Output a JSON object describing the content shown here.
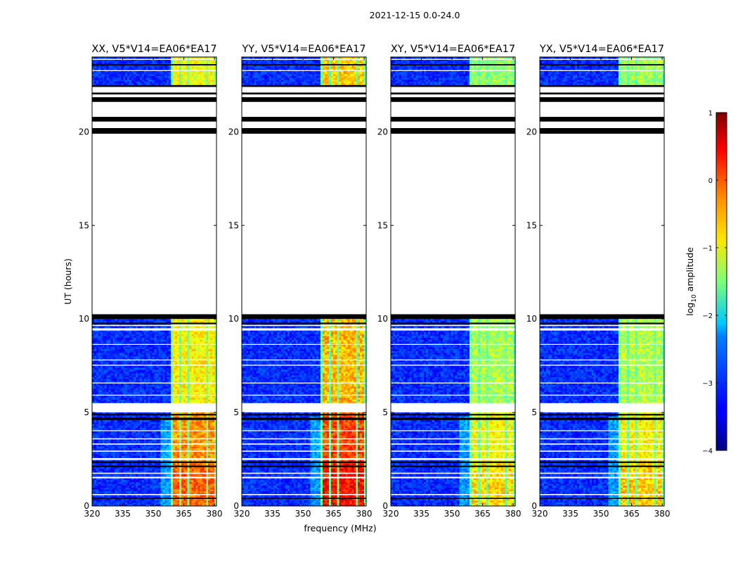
{
  "figure": {
    "suptitle": "2021-12-15 0.0-24.0",
    "ylabel": "UT (hours)",
    "xlabel": "frequency (MHz)"
  },
  "chart_data": {
    "type": "heatmap",
    "title": "2021-12-15 0.0-24.0",
    "xlabel": "frequency (MHz)",
    "ylabel": "UT (hours)",
    "xlim": [
      320,
      381
    ],
    "ylim": [
      0,
      24
    ],
    "xticks": [
      "320",
      "335",
      "350",
      "365",
      "380"
    ],
    "xtick_values": [
      320,
      335,
      350,
      365,
      380
    ],
    "yticks": [
      "0",
      "5",
      "10",
      "15",
      "20"
    ],
    "ytick_values": [
      0,
      5,
      10,
      15,
      20
    ],
    "panels": [
      {
        "title": "XX, V5*V14=EA06*EA17",
        "strength": 1.0
      },
      {
        "title": "YY, V5*V14=EA06*EA17",
        "strength": 1.15
      },
      {
        "title": "XY, V5*V14=EA06*EA17",
        "strength": 0.8
      },
      {
        "title": "YX, V5*V14=EA06*EA17",
        "strength": 0.82
      }
    ],
    "rfi_band_mhz": [
      359,
      380.5
    ],
    "data_ranges_ut": [
      [
        0,
        10.15
      ],
      [
        22.5,
        24
      ]
    ],
    "blank_ranges_ut": [
      [
        5.05,
        5.45
      ],
      [
        10.2,
        22.4
      ]
    ],
    "flagged_black_ut": [
      [
        0.38,
        0.44
      ],
      [
        2.08,
        2.16
      ],
      [
        2.3,
        2.38
      ],
      [
        4.6,
        4.72
      ],
      [
        4.84,
        4.92
      ],
      [
        9.72,
        9.8
      ],
      [
        10.0,
        10.25
      ],
      [
        19.9,
        20.2
      ],
      [
        20.55,
        20.8
      ],
      [
        21.6,
        21.85
      ],
      [
        22.0,
        22.1
      ],
      [
        22.4,
        22.5
      ],
      [
        23.55,
        23.62
      ]
    ],
    "flagged_white_ut": [
      [
        0.58,
        0.64
      ],
      [
        1.48,
        1.56
      ],
      [
        1.72,
        1.78
      ],
      [
        2.46,
        2.56
      ],
      [
        2.9,
        2.96
      ],
      [
        3.28,
        3.34
      ],
      [
        3.56,
        3.62
      ],
      [
        4.0,
        4.05
      ],
      [
        5.45,
        5.5
      ],
      [
        5.9,
        5.95
      ],
      [
        6.55,
        6.6
      ],
      [
        7.5,
        7.55
      ],
      [
        7.78,
        7.83
      ],
      [
        8.62,
        8.66
      ],
      [
        9.38,
        9.5
      ],
      [
        9.62,
        9.68
      ],
      [
        23.25,
        23.3
      ],
      [
        23.85,
        23.9
      ]
    ],
    "colorbar": {
      "label": "log10 amplitude",
      "min": -4,
      "max": 1,
      "ticks": [
        "1",
        "0",
        "−1",
        "−2",
        "−3",
        "−4"
      ],
      "tick_values": [
        1,
        0,
        -1,
        -2,
        -3,
        -4
      ],
      "colormap": "jet"
    }
  }
}
